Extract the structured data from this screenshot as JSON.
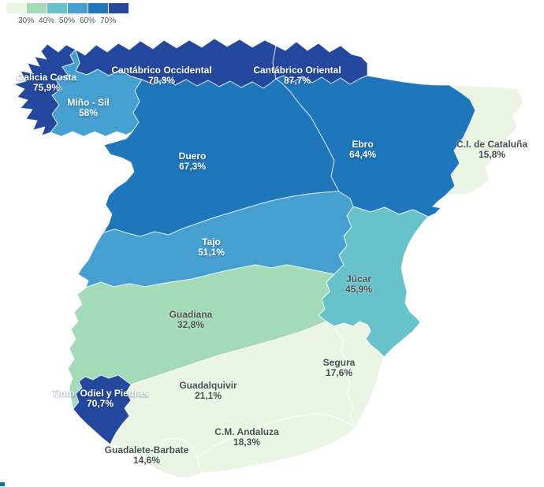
{
  "legend": {
    "ticks": [
      "30%",
      "40%",
      "50%",
      "60%",
      "70%"
    ],
    "colors": [
      "#eaf5e3",
      "#a3dab8",
      "#68c2ca",
      "#459fd0",
      "#1e76bb",
      "#24489d"
    ]
  },
  "label_colors": {
    "light": "#ffffff",
    "dark": "#474f4f"
  },
  "regions": [
    {
      "id": "galicia-costa",
      "name": "Galicia Costa",
      "value": "75,9%",
      "band": 5
    },
    {
      "id": "cantabrico-occidental",
      "name": "Cantábrico Occidental",
      "value": "78,3%",
      "band": 5
    },
    {
      "id": "cantabrico-oriental",
      "name": "Cantábrico Oriental",
      "value": "87,7%",
      "band": 5
    },
    {
      "id": "mino-sil",
      "name": "Miño - Sil",
      "value": "58%",
      "band": 3
    },
    {
      "id": "duero",
      "name": "Duero",
      "value": "67,3%",
      "band": 4
    },
    {
      "id": "ebro",
      "name": "Ebro",
      "value": "64,4%",
      "band": 4
    },
    {
      "id": "cataluna",
      "name": "C.I. de Cataluña",
      "value": "15,8%",
      "band": 0
    },
    {
      "id": "tajo",
      "name": "Tajo",
      "value": "51,1%",
      "band": 3
    },
    {
      "id": "jucar",
      "name": "Júcar",
      "value": "45,9%",
      "band": 2
    },
    {
      "id": "guadiana",
      "name": "Guadiana",
      "value": "32,8%",
      "band": 1
    },
    {
      "id": "segura",
      "name": "Segura",
      "value": "17,6%",
      "band": 0
    },
    {
      "id": "guadalquivir",
      "name": "Guadalquivir",
      "value": "21,1%",
      "band": 0
    },
    {
      "id": "tinto-odiel-piedras",
      "name": "Tinto, Odiel y Piedras",
      "value": "70,7%",
      "band": 5
    },
    {
      "id": "cm-andaluza",
      "name": "C.M. Andaluza",
      "value": "18,3%",
      "band": 0
    },
    {
      "id": "guadalete-barbate",
      "name": "Guadalete-Barbate",
      "value": "14,6%",
      "band": 0
    }
  ]
}
